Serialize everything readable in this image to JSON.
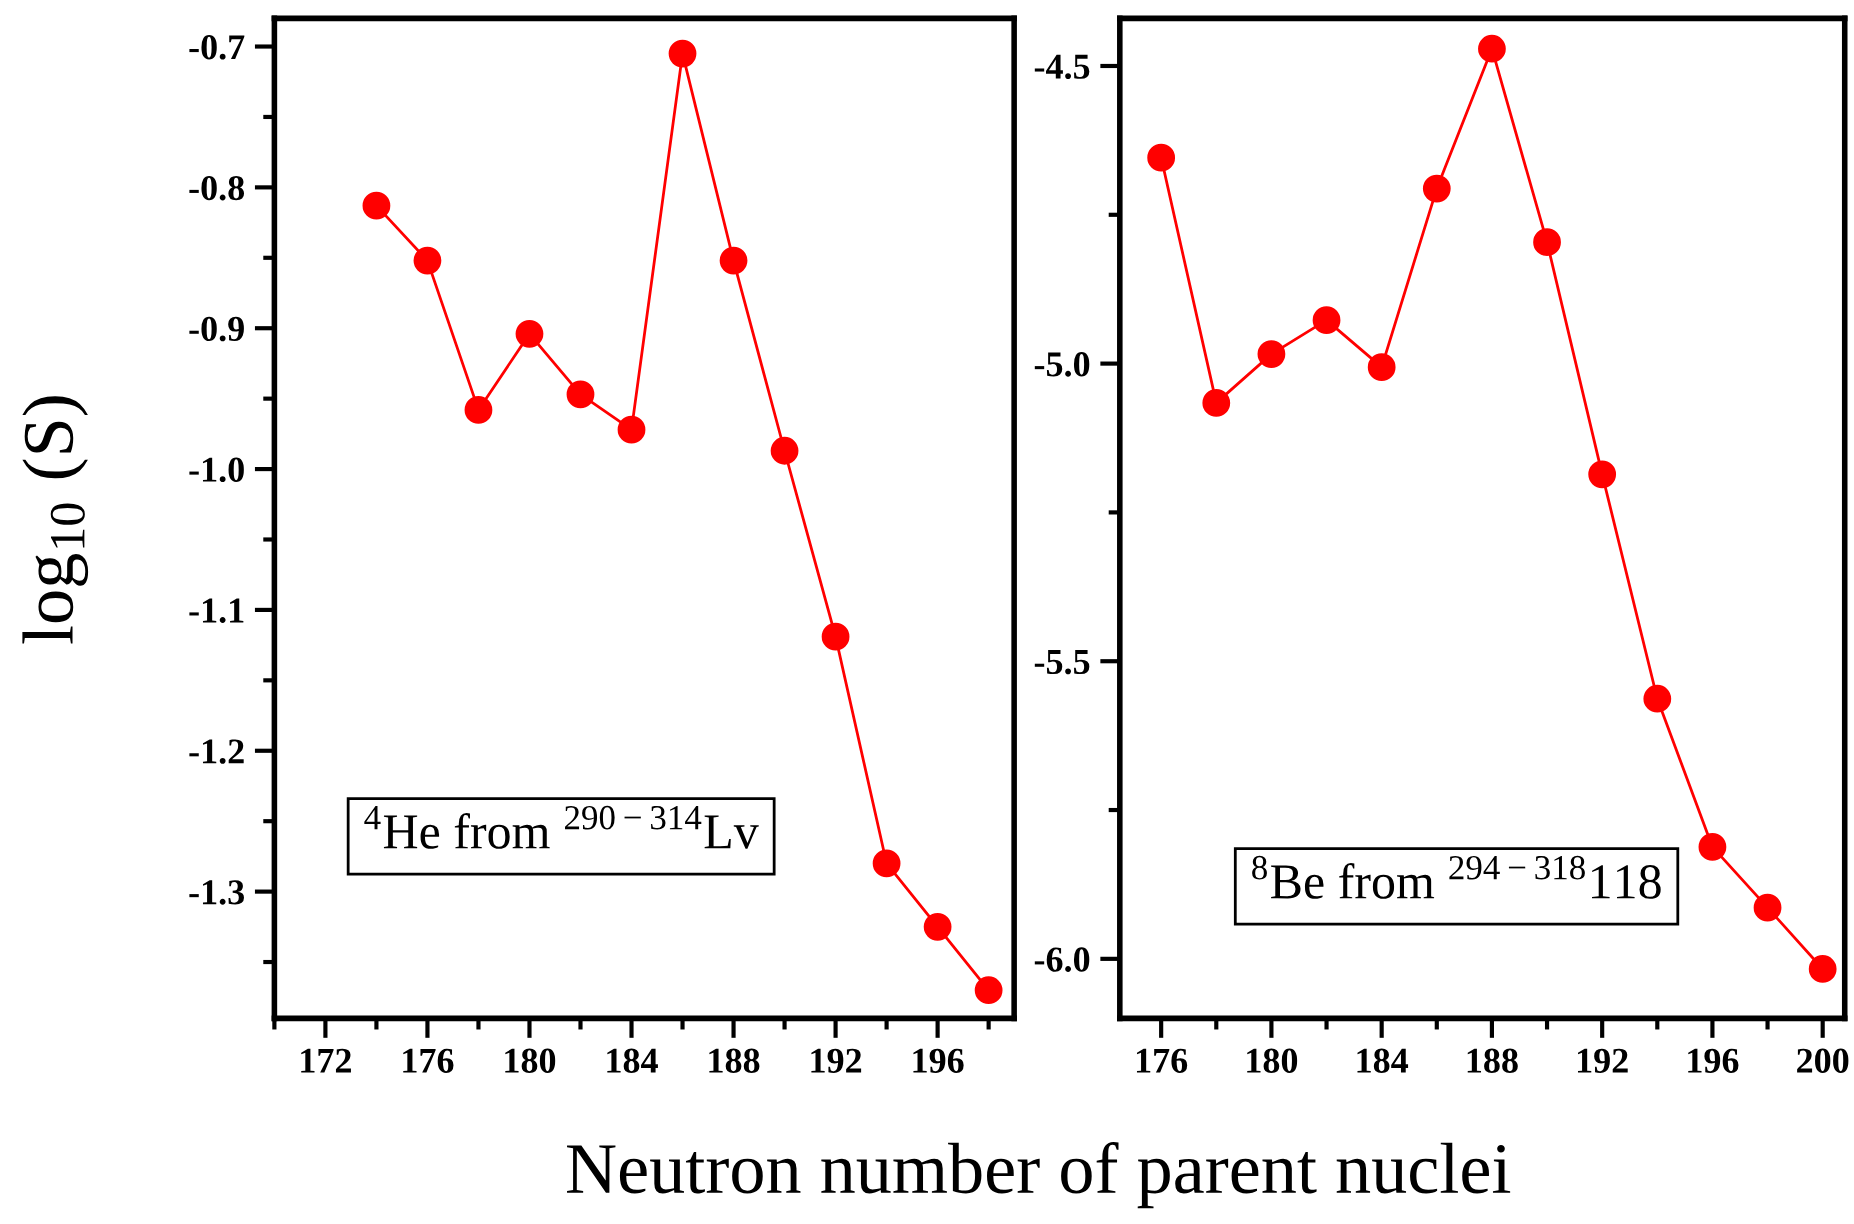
{
  "chart_data": [
    {
      "type": "line",
      "ylabel": "log$_{10}$ (S)",
      "xlabel": "Neutron number of parent nuclei",
      "annotations": [
        "$^{4}$He from $^{290−314}$Lv"
      ],
      "series": [
        {
          "color": "#ff0000",
          "x": [
            174,
            176,
            178,
            180,
            182,
            184,
            186,
            188,
            190,
            192,
            194,
            196,
            198
          ],
          "values": [
            -0.813,
            -0.852,
            -0.958,
            -0.904,
            -0.947,
            -0.972,
            -0.705,
            -0.852,
            -0.987,
            -1.119,
            -1.28,
            -1.325,
            -1.37
          ]
        }
      ],
      "xlim": [
        170,
        199
      ],
      "xticks": [
        172,
        176,
        180,
        184,
        188,
        192,
        196
      ],
      "ylim": [
        -1.39,
        -0.68
      ],
      "yticks": [
        -1.3,
        -1.2,
        -1.1,
        {
          "value": -1,
          "label": "-1.0"
        },
        -0.9,
        -0.8,
        -0.7
      ],
      "marker": "circle",
      "line_style": "solid",
      "grid": false,
      "legend": false
    },
    {
      "type": "line",
      "annotations": [
        "$^{8}$Be from $^{294−318}$118"
      ],
      "series": [
        {
          "color": "#ff0000",
          "x": [
            176,
            178,
            180,
            182,
            184,
            186,
            188,
            190,
            192,
            194,
            196,
            198,
            200
          ],
          "values": [
            -4.654,
            -5.066,
            -4.984,
            -4.927,
            -5.006,
            -4.706,
            -4.471,
            -4.796,
            -5.186,
            -5.563,
            -5.812,
            -5.914,
            -6.017
          ]
        }
      ],
      "xlim": [
        174.5,
        200.8
      ],
      "xticks": [
        176,
        180,
        184,
        188,
        192,
        196,
        200
      ],
      "ylim": [
        -6.1,
        -4.42
      ],
      "yticks": [
        {
          "value": -6,
          "label": "-6.0"
        },
        -5.5,
        {
          "value": -5,
          "label": "-5.0"
        },
        -4.5
      ],
      "marker": "circle",
      "line_style": "solid",
      "grid": false,
      "legend": false
    }
  ]
}
